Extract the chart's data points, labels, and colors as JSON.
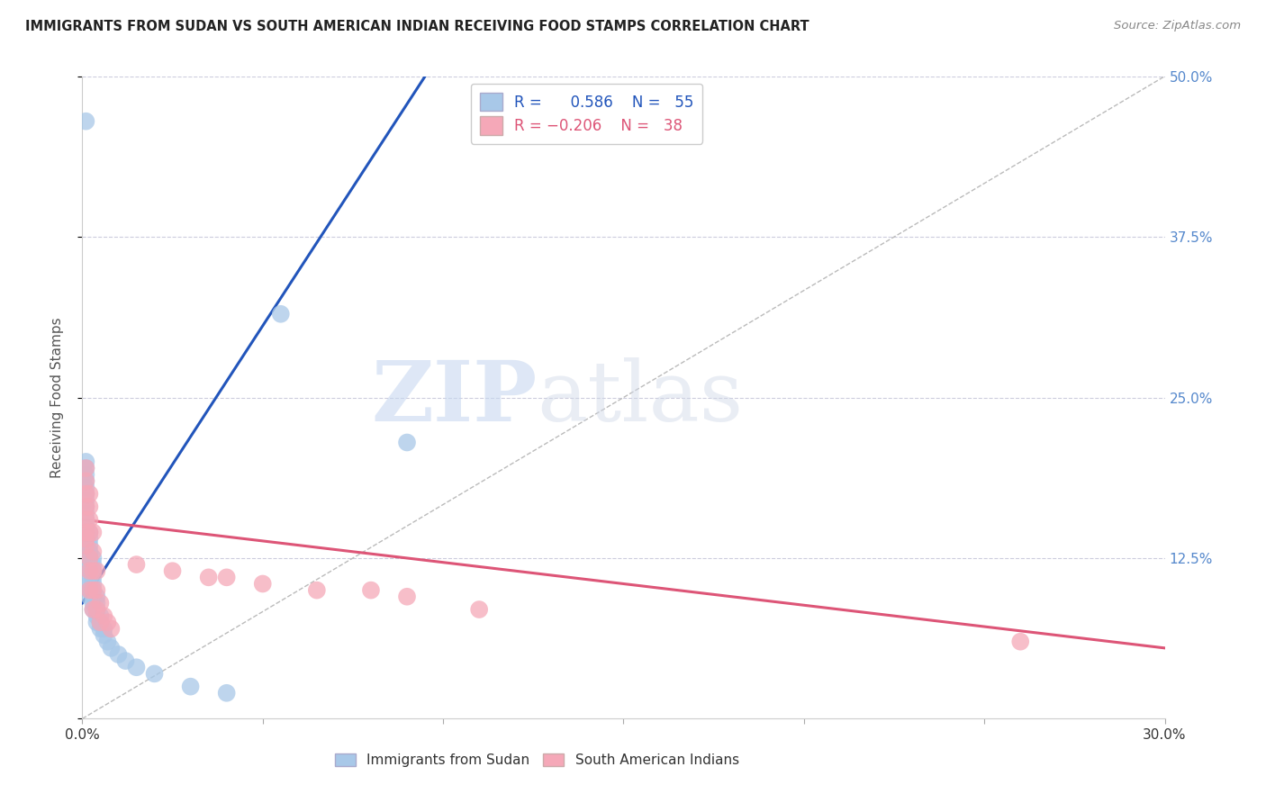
{
  "title": "IMMIGRANTS FROM SUDAN VS SOUTH AMERICAN INDIAN RECEIVING FOOD STAMPS CORRELATION CHART",
  "source": "Source: ZipAtlas.com",
  "ylabel": "Receiving Food Stamps",
  "xlabel": "",
  "xlim": [
    0.0,
    0.3
  ],
  "ylim": [
    0.0,
    0.5
  ],
  "watermark": "ZIPatlas",
  "blue_color": "#a8c8e8",
  "pink_color": "#f5a8b8",
  "blue_line_color": "#2255bb",
  "pink_line_color": "#dd5577",
  "ref_line_color": "#bbbbbb",
  "grid_color": "#ccccdd",
  "title_color": "#222222",
  "axis_label_color": "#555555",
  "right_tick_color": "#5588cc",
  "sudan_x": [
    0.001,
    0.001,
    0.001,
    0.001,
    0.001,
    0.001,
    0.001,
    0.001,
    0.001,
    0.001,
    0.001,
    0.001,
    0.001,
    0.001,
    0.002,
    0.002,
    0.002,
    0.002,
    0.002,
    0.002,
    0.002,
    0.002,
    0.002,
    0.002,
    0.002,
    0.003,
    0.003,
    0.003,
    0.003,
    0.003,
    0.003,
    0.003,
    0.003,
    0.003,
    0.004,
    0.004,
    0.004,
    0.004,
    0.004,
    0.005,
    0.005,
    0.005,
    0.006,
    0.006,
    0.007,
    0.008,
    0.01,
    0.012,
    0.015,
    0.02,
    0.03,
    0.04,
    0.001,
    0.055,
    0.09
  ],
  "sudan_y": [
    0.135,
    0.14,
    0.145,
    0.15,
    0.155,
    0.16,
    0.165,
    0.17,
    0.175,
    0.18,
    0.185,
    0.19,
    0.195,
    0.2,
    0.095,
    0.1,
    0.105,
    0.11,
    0.115,
    0.12,
    0.125,
    0.13,
    0.135,
    0.14,
    0.145,
    0.085,
    0.09,
    0.095,
    0.1,
    0.105,
    0.11,
    0.115,
    0.12,
    0.125,
    0.075,
    0.08,
    0.085,
    0.09,
    0.095,
    0.07,
    0.075,
    0.08,
    0.065,
    0.07,
    0.06,
    0.055,
    0.05,
    0.045,
    0.04,
    0.035,
    0.025,
    0.02,
    0.465,
    0.315,
    0.215
  ],
  "indian_x": [
    0.001,
    0.001,
    0.001,
    0.001,
    0.001,
    0.001,
    0.001,
    0.001,
    0.002,
    0.002,
    0.002,
    0.002,
    0.002,
    0.002,
    0.002,
    0.003,
    0.003,
    0.003,
    0.003,
    0.003,
    0.004,
    0.004,
    0.004,
    0.005,
    0.005,
    0.006,
    0.007,
    0.008,
    0.015,
    0.025,
    0.035,
    0.04,
    0.05,
    0.065,
    0.08,
    0.09,
    0.11,
    0.26
  ],
  "indian_y": [
    0.135,
    0.14,
    0.145,
    0.155,
    0.165,
    0.175,
    0.185,
    0.195,
    0.1,
    0.115,
    0.125,
    0.145,
    0.155,
    0.165,
    0.175,
    0.085,
    0.1,
    0.115,
    0.13,
    0.145,
    0.085,
    0.1,
    0.115,
    0.075,
    0.09,
    0.08,
    0.075,
    0.07,
    0.12,
    0.115,
    0.11,
    0.11,
    0.105,
    0.1,
    0.1,
    0.095,
    0.085,
    0.06
  ],
  "sudan_trend_x": [
    0.0,
    0.095
  ],
  "sudan_trend_y": [
    0.09,
    0.5
  ],
  "indian_trend_x": [
    0.0,
    0.3
  ],
  "indian_trend_y": [
    0.155,
    0.055
  ],
  "ref_line_x": [
    0.0,
    0.3
  ],
  "ref_line_y": [
    0.0,
    0.5
  ]
}
